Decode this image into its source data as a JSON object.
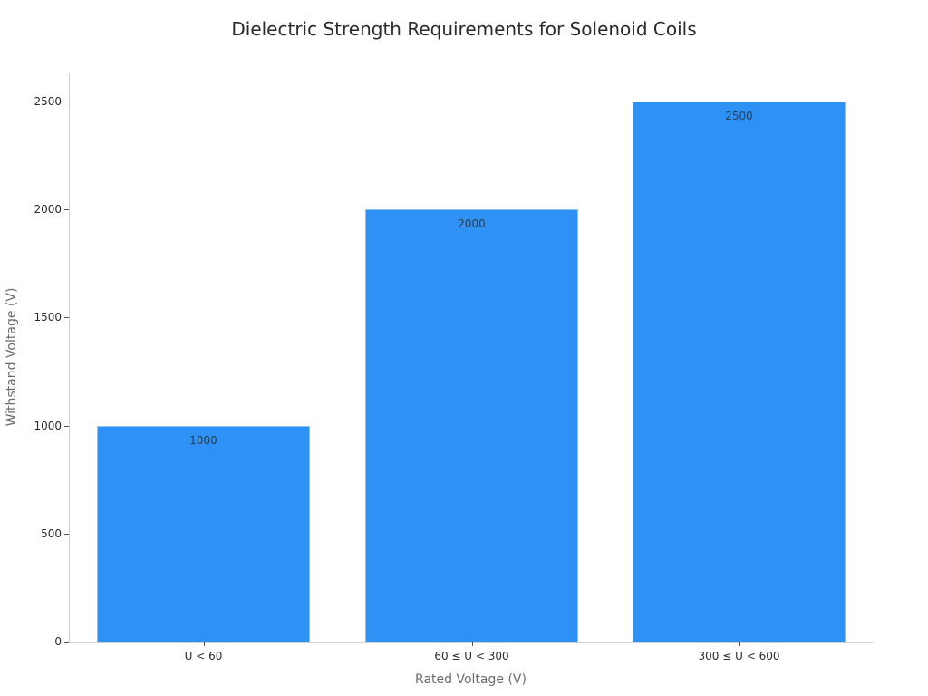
{
  "chart_data": {
    "type": "bar",
    "title": "Dielectric Strength Requirements for Solenoid Coils",
    "xlabel": "Rated Voltage (V)",
    "ylabel": "Withstand Voltage (V)",
    "categories": [
      "U < 60",
      "60 ≤ U < 300",
      "300 ≤ U < 600"
    ],
    "values": [
      1000,
      2000,
      2500
    ],
    "data_labels": [
      "1000",
      "2000",
      "2500"
    ],
    "yticks": [
      "0",
      "500",
      "1000",
      "1500",
      "2000",
      "2500"
    ],
    "ylim": [
      0,
      2630
    ],
    "grid": false,
    "legend": null,
    "bar_color": "#2e91f5"
  }
}
